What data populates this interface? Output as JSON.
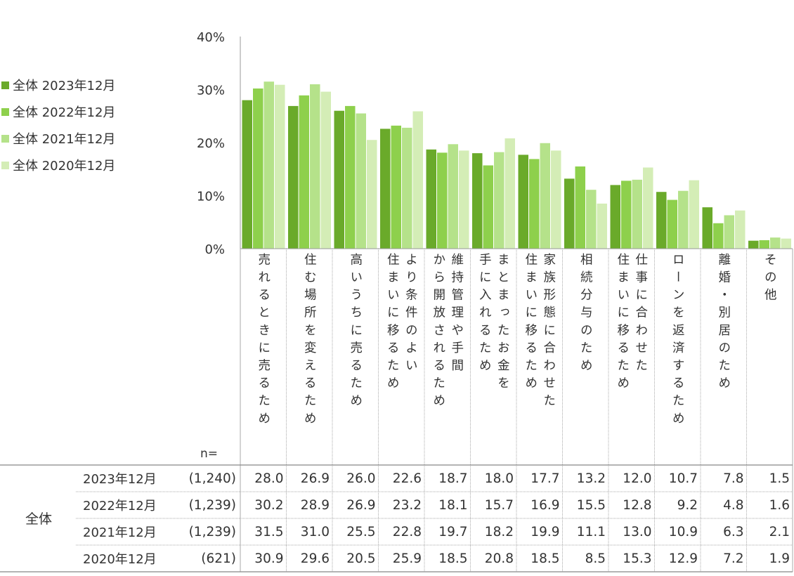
{
  "chart_data": {
    "type": "bar",
    "y_ticks": [
      "0%",
      "10%",
      "20%",
      "30%",
      "40%"
    ],
    "ylim": [
      0,
      40
    ],
    "categories": [
      [
        "売れるときに売るため"
      ],
      [
        "住む場所を変えるため"
      ],
      [
        "高いうちに売るため"
      ],
      [
        "より条件のよい",
        "住まいに移るため"
      ],
      [
        "維持管理や手間",
        "から開放されるため"
      ],
      [
        "まとまったお金を",
        "手に入れるため"
      ],
      [
        "家族形態に合わせた",
        "住まいに移るため"
      ],
      [
        "相続分与のため"
      ],
      [
        "仕事に合わせた",
        "住まいに移るため"
      ],
      [
        "ローンを返済するため"
      ],
      [
        "離婚・別居のため"
      ],
      [
        "その他"
      ]
    ],
    "series": [
      {
        "name": "全体 2023年12月",
        "color": "#6aaa2a",
        "table_label": "2023年12月",
        "n": "(1,240)",
        "values": [
          28.0,
          26.9,
          26.0,
          22.6,
          18.7,
          18.0,
          17.7,
          13.2,
          12.0,
          10.7,
          7.8,
          1.5
        ],
        "labels": [
          "28.0",
          "26.9",
          "26.0",
          "22.6",
          "18.7",
          "18.0",
          "17.7",
          "13.2",
          "12.0",
          "10.7",
          "7.8",
          "1.5"
        ]
      },
      {
        "name": "全体 2022年12月",
        "color": "#8ed04c",
        "table_label": "2022年12月",
        "n": "(1,239)",
        "values": [
          30.2,
          28.9,
          26.9,
          23.2,
          18.1,
          15.7,
          16.9,
          15.5,
          12.8,
          9.2,
          4.8,
          1.6
        ],
        "labels": [
          "30.2",
          "28.9",
          "26.9",
          "23.2",
          "18.1",
          "15.7",
          "16.9",
          "15.5",
          "12.8",
          "9.2",
          "4.8",
          "1.6"
        ]
      },
      {
        "name": "全体 2021年12月",
        "color": "#b5e28a",
        "table_label": "2021年12月",
        "n": "(1,239)",
        "values": [
          31.5,
          31.0,
          25.5,
          22.8,
          19.7,
          18.2,
          19.9,
          11.1,
          13.0,
          10.9,
          6.3,
          2.1
        ],
        "labels": [
          "31.5",
          "31.0",
          "25.5",
          "22.8",
          "19.7",
          "18.2",
          "19.9",
          "11.1",
          "13.0",
          "10.9",
          "6.3",
          "2.1"
        ]
      },
      {
        "name": "全体 2020年12月",
        "color": "#d4edb6",
        "table_label": "2020年12月",
        "n": "(621)",
        "values": [
          30.9,
          29.6,
          20.5,
          25.9,
          18.5,
          20.8,
          18.5,
          8.5,
          15.3,
          12.9,
          7.2,
          1.9
        ],
        "labels": [
          "30.9",
          "29.6",
          "20.5",
          "25.9",
          "18.5",
          "20.8",
          "18.5",
          "8.5",
          "15.3",
          "12.9",
          "7.2",
          "1.9"
        ]
      }
    ],
    "legend_position": "left",
    "grid": false
  },
  "table": {
    "n_label": "n=",
    "group_label": "全体"
  }
}
